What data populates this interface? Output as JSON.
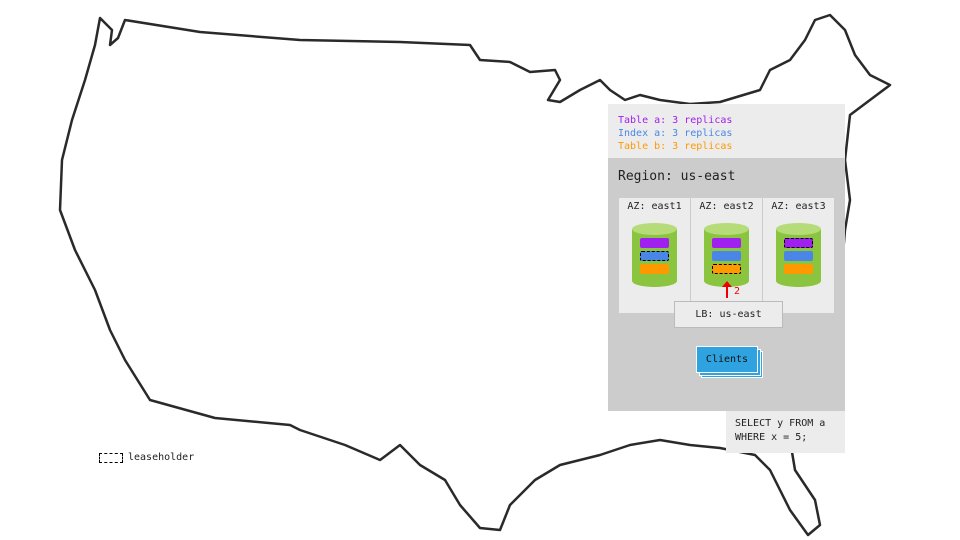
{
  "replicas": [
    {
      "text": "Table a: 3 replicas",
      "color": "#a020f0"
    },
    {
      "text": "Index a: 3 replicas",
      "color": "#4a86e8"
    },
    {
      "text": "Table b: 3 replicas",
      "color": "#ff9900"
    }
  ],
  "region": {
    "title": "Region: us-east"
  },
  "azs": [
    {
      "label": "AZ: east1",
      "leaseholder": "index"
    },
    {
      "label": "AZ: east2",
      "leaseholder": "tableb"
    },
    {
      "label": "AZ: east3",
      "leaseholder": "tablea"
    }
  ],
  "load_balancer": "LB: us-east",
  "arrow_label": "2",
  "clients": "Clients",
  "query": "SELECT y FROM a\nWHERE x = 5;",
  "legend": {
    "leaseholder": "leaseholder"
  },
  "colors": {
    "node_green": "#8bc53f",
    "node_top": "#b5dc78",
    "clients_blue": "#2fa3df"
  }
}
